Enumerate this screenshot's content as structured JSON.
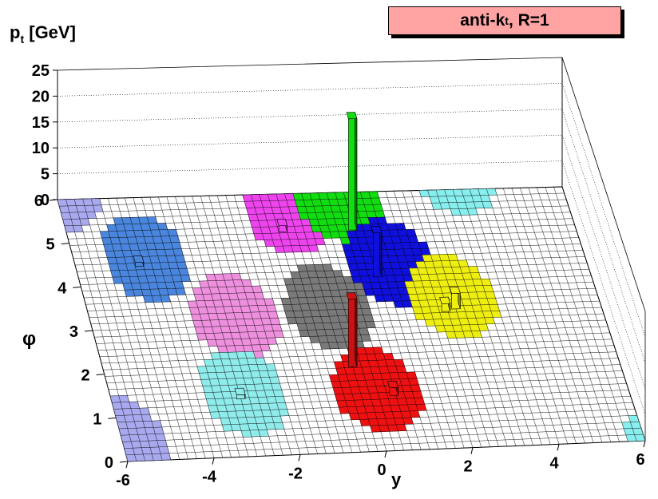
{
  "chart_data": {
    "type": "lego-3d",
    "title_parts": [
      "anti-k",
      "t",
      ", R=1"
    ],
    "xlabel": "y",
    "ylabel": "φ",
    "zlabel_parts": [
      "p",
      "t",
      " [GeV]"
    ],
    "xlim": [
      -6,
      6
    ],
    "ylim": [
      0,
      6
    ],
    "zlim": [
      0,
      25
    ],
    "x_ticks": [
      "-6",
      "-4",
      "-2",
      "0",
      "2",
      "4",
      "6"
    ],
    "y_ticks": [
      "0",
      "1",
      "2",
      "3",
      "4",
      "5",
      "6"
    ],
    "z_ticks": [
      "0",
      "5",
      "10",
      "15",
      "20",
      "25"
    ],
    "grid": true,
    "jets": [
      {
        "color": "#a9a9ef",
        "y": -6.0,
        "phi": 0.5,
        "radius": 1.0
      },
      {
        "color": "#a9a9ef",
        "y": -6.0,
        "phi": 6.2,
        "radius": 1.0
      },
      {
        "color": "#4a86dd",
        "y": -4.3,
        "phi": 4.6,
        "radius": 1.0
      },
      {
        "color": "#ee90de",
        "y": -2.6,
        "phi": 3.2,
        "radius": 1.0
      },
      {
        "color": "#90ebeb",
        "y": -2.9,
        "phi": 1.45,
        "radius": 1.0
      },
      {
        "color": "#7a7a7a",
        "y": -0.35,
        "phi": 3.35,
        "radius": 1.0
      },
      {
        "color": "#ee1111",
        "y": 0.2,
        "phi": 1.4,
        "radius": 1.0
      },
      {
        "color": "#ee44ee",
        "y": -0.7,
        "phi": 5.6,
        "radius": 1.0
      },
      {
        "color": "#11dd11",
        "y": 0.6,
        "phi": 5.85,
        "radius": 1.0
      },
      {
        "color": "#1010dd",
        "y": 1.4,
        "phi": 4.35,
        "radius": 1.0
      },
      {
        "color": "#eeee11",
        "y": 2.6,
        "phi": 3.5,
        "radius": 1.0
      },
      {
        "color": "#88eeee",
        "y": 3.5,
        "phi": 6.4,
        "radius": 1.0
      },
      {
        "color": "#88eeee",
        "y": 6.0,
        "phi": 0.1,
        "radius": 0.5
      }
    ],
    "towers": [
      {
        "color": "#11dd11",
        "y": 0.75,
        "phi": 5.2,
        "pt": 21.5
      },
      {
        "color": "#1010dd",
        "y": 1.0,
        "phi": 4.1,
        "pt": 8.5
      },
      {
        "color": "#cc1111",
        "y": -0.2,
        "phi": 2.05,
        "pt": 13.0
      },
      {
        "color": "#ee1111",
        "y": 0.55,
        "phi": 1.35,
        "pt": 1.5
      },
      {
        "color": "#eeee11",
        "y": 2.6,
        "phi": 3.3,
        "pt": 3.0
      },
      {
        "color": "#eeee11",
        "y": 2.35,
        "phi": 3.25,
        "pt": 1.5
      },
      {
        "color": "#4a86dd",
        "y": -4.5,
        "phi": 4.5,
        "pt": 0.8
      },
      {
        "color": "#ee44ee",
        "y": -0.9,
        "phi": 5.2,
        "pt": 1.2
      },
      {
        "color": "#90ebeb",
        "y": -3.0,
        "phi": 1.4,
        "pt": 0.8
      }
    ]
  }
}
